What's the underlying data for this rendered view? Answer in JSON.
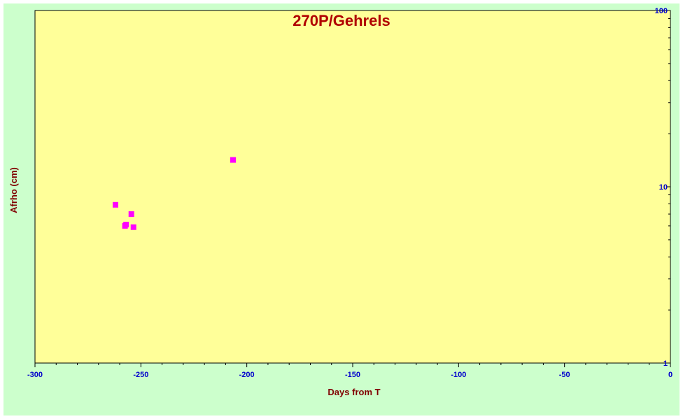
{
  "chart_data": {
    "type": "scatter",
    "title": "270P/Gehrels",
    "xlabel": "Days from  T",
    "ylabel": "Afrho (cm)",
    "xlim": [
      -300,
      0
    ],
    "ylim": [
      1,
      100
    ],
    "yscale": "log",
    "x_ticks": [
      -300,
      -250,
      -200,
      -150,
      -100,
      -50,
      0
    ],
    "y_ticks": [
      1,
      10,
      100
    ],
    "grid": false,
    "colors": {
      "background": "#ccffcc",
      "plot_area": "#ffff99",
      "marker": "#ff00ff",
      "title": "#b00000",
      "axis_label": "#800000",
      "tick_label": "#0000cc"
    },
    "series": [
      {
        "x": [
          -262,
          -257.5,
          -257,
          -254.5,
          -253.5,
          -206.5
        ],
        "y": [
          7.9,
          6.0,
          6.1,
          7.0,
          5.9,
          14.2
        ]
      }
    ]
  }
}
